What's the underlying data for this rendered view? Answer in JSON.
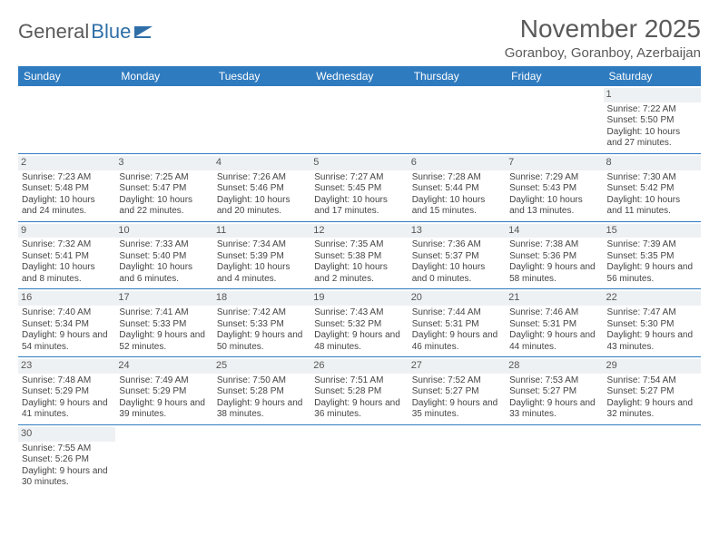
{
  "logo": {
    "text_a": "General",
    "text_b": "Blue"
  },
  "title": "November 2025",
  "location": "Goranboy, Goranboy, Azerbaijan",
  "colors": {
    "header_bg": "#2f7bbf",
    "header_text": "#ffffff",
    "divider": "#2f7bbf",
    "daynum_bg": "#eef1f3",
    "text": "#444444",
    "logo_gray": "#5a5a5a",
    "logo_blue": "#2f6fa8"
  },
  "weekdays": [
    "Sunday",
    "Monday",
    "Tuesday",
    "Wednesday",
    "Thursday",
    "Friday",
    "Saturday"
  ],
  "weeks": [
    [
      null,
      null,
      null,
      null,
      null,
      null,
      {
        "n": "1",
        "sunrise": "Sunrise: 7:22 AM",
        "sunset": "Sunset: 5:50 PM",
        "daylight": "Daylight: 10 hours and 27 minutes."
      }
    ],
    [
      {
        "n": "2",
        "sunrise": "Sunrise: 7:23 AM",
        "sunset": "Sunset: 5:48 PM",
        "daylight": "Daylight: 10 hours and 24 minutes."
      },
      {
        "n": "3",
        "sunrise": "Sunrise: 7:25 AM",
        "sunset": "Sunset: 5:47 PM",
        "daylight": "Daylight: 10 hours and 22 minutes."
      },
      {
        "n": "4",
        "sunrise": "Sunrise: 7:26 AM",
        "sunset": "Sunset: 5:46 PM",
        "daylight": "Daylight: 10 hours and 20 minutes."
      },
      {
        "n": "5",
        "sunrise": "Sunrise: 7:27 AM",
        "sunset": "Sunset: 5:45 PM",
        "daylight": "Daylight: 10 hours and 17 minutes."
      },
      {
        "n": "6",
        "sunrise": "Sunrise: 7:28 AM",
        "sunset": "Sunset: 5:44 PM",
        "daylight": "Daylight: 10 hours and 15 minutes."
      },
      {
        "n": "7",
        "sunrise": "Sunrise: 7:29 AM",
        "sunset": "Sunset: 5:43 PM",
        "daylight": "Daylight: 10 hours and 13 minutes."
      },
      {
        "n": "8",
        "sunrise": "Sunrise: 7:30 AM",
        "sunset": "Sunset: 5:42 PM",
        "daylight": "Daylight: 10 hours and 11 minutes."
      }
    ],
    [
      {
        "n": "9",
        "sunrise": "Sunrise: 7:32 AM",
        "sunset": "Sunset: 5:41 PM",
        "daylight": "Daylight: 10 hours and 8 minutes."
      },
      {
        "n": "10",
        "sunrise": "Sunrise: 7:33 AM",
        "sunset": "Sunset: 5:40 PM",
        "daylight": "Daylight: 10 hours and 6 minutes."
      },
      {
        "n": "11",
        "sunrise": "Sunrise: 7:34 AM",
        "sunset": "Sunset: 5:39 PM",
        "daylight": "Daylight: 10 hours and 4 minutes."
      },
      {
        "n": "12",
        "sunrise": "Sunrise: 7:35 AM",
        "sunset": "Sunset: 5:38 PM",
        "daylight": "Daylight: 10 hours and 2 minutes."
      },
      {
        "n": "13",
        "sunrise": "Sunrise: 7:36 AM",
        "sunset": "Sunset: 5:37 PM",
        "daylight": "Daylight: 10 hours and 0 minutes."
      },
      {
        "n": "14",
        "sunrise": "Sunrise: 7:38 AM",
        "sunset": "Sunset: 5:36 PM",
        "daylight": "Daylight: 9 hours and 58 minutes."
      },
      {
        "n": "15",
        "sunrise": "Sunrise: 7:39 AM",
        "sunset": "Sunset: 5:35 PM",
        "daylight": "Daylight: 9 hours and 56 minutes."
      }
    ],
    [
      {
        "n": "16",
        "sunrise": "Sunrise: 7:40 AM",
        "sunset": "Sunset: 5:34 PM",
        "daylight": "Daylight: 9 hours and 54 minutes."
      },
      {
        "n": "17",
        "sunrise": "Sunrise: 7:41 AM",
        "sunset": "Sunset: 5:33 PM",
        "daylight": "Daylight: 9 hours and 52 minutes."
      },
      {
        "n": "18",
        "sunrise": "Sunrise: 7:42 AM",
        "sunset": "Sunset: 5:33 PM",
        "daylight": "Daylight: 9 hours and 50 minutes."
      },
      {
        "n": "19",
        "sunrise": "Sunrise: 7:43 AM",
        "sunset": "Sunset: 5:32 PM",
        "daylight": "Daylight: 9 hours and 48 minutes."
      },
      {
        "n": "20",
        "sunrise": "Sunrise: 7:44 AM",
        "sunset": "Sunset: 5:31 PM",
        "daylight": "Daylight: 9 hours and 46 minutes."
      },
      {
        "n": "21",
        "sunrise": "Sunrise: 7:46 AM",
        "sunset": "Sunset: 5:31 PM",
        "daylight": "Daylight: 9 hours and 44 minutes."
      },
      {
        "n": "22",
        "sunrise": "Sunrise: 7:47 AM",
        "sunset": "Sunset: 5:30 PM",
        "daylight": "Daylight: 9 hours and 43 minutes."
      }
    ],
    [
      {
        "n": "23",
        "sunrise": "Sunrise: 7:48 AM",
        "sunset": "Sunset: 5:29 PM",
        "daylight": "Daylight: 9 hours and 41 minutes."
      },
      {
        "n": "24",
        "sunrise": "Sunrise: 7:49 AM",
        "sunset": "Sunset: 5:29 PM",
        "daylight": "Daylight: 9 hours and 39 minutes."
      },
      {
        "n": "25",
        "sunrise": "Sunrise: 7:50 AM",
        "sunset": "Sunset: 5:28 PM",
        "daylight": "Daylight: 9 hours and 38 minutes."
      },
      {
        "n": "26",
        "sunrise": "Sunrise: 7:51 AM",
        "sunset": "Sunset: 5:28 PM",
        "daylight": "Daylight: 9 hours and 36 minutes."
      },
      {
        "n": "27",
        "sunrise": "Sunrise: 7:52 AM",
        "sunset": "Sunset: 5:27 PM",
        "daylight": "Daylight: 9 hours and 35 minutes."
      },
      {
        "n": "28",
        "sunrise": "Sunrise: 7:53 AM",
        "sunset": "Sunset: 5:27 PM",
        "daylight": "Daylight: 9 hours and 33 minutes."
      },
      {
        "n": "29",
        "sunrise": "Sunrise: 7:54 AM",
        "sunset": "Sunset: 5:27 PM",
        "daylight": "Daylight: 9 hours and 32 minutes."
      }
    ],
    [
      {
        "n": "30",
        "sunrise": "Sunrise: 7:55 AM",
        "sunset": "Sunset: 5:26 PM",
        "daylight": "Daylight: 9 hours and 30 minutes."
      },
      null,
      null,
      null,
      null,
      null,
      null
    ]
  ]
}
